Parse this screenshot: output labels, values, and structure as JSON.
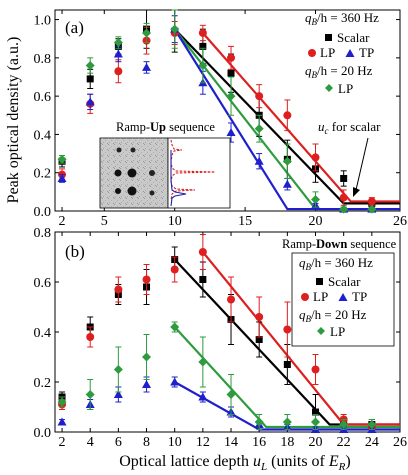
{
  "figure": {
    "ylabel": "Peak optical density (a.u.)",
    "xlabel_main": "Optical lattice depth ",
    "xlabel_sym": "u",
    "xlabel_sub": "L",
    "xlabel_units_open": " (units of ",
    "xlabel_units_sym": "E",
    "xlabel_units_sub": "R",
    "xlabel_units_close": ")"
  },
  "colors": {
    "scalar": "#000000",
    "lp_360": "#dd1f1f",
    "tp_360": "#1f1fcc",
    "lp_20": "#2e9b3e",
    "inset_red": "#d42020",
    "inset_blue": "#2020b0"
  },
  "icons": {
    "scalar": "square",
    "lp_360": "circle",
    "tp_360": "triangle",
    "lp_20": "diamond"
  },
  "chart_data": [
    {
      "type": "scatter",
      "panel_label": "(a)",
      "x_ticks": [
        2,
        5,
        10,
        15,
        20,
        26
      ],
      "y_ticks": [
        "0.0",
        "0.2",
        "0.4",
        "0.6",
        "0.8",
        "1.0"
      ],
      "show_x_ticklabels": true,
      "xlim": [
        1.5,
        26
      ],
      "ylim": [
        0,
        1.05
      ],
      "legend": {
        "header1": "q_B/h = 360 Hz",
        "header1_prefix": "q",
        "header1_sub": "B",
        "header1_suffix": "/h = 360 Hz",
        "scalar": "Scalar",
        "lp": "LP",
        "tp": "TP",
        "header2_prefix": "q",
        "header2_sub": "B",
        "header2_suffix": "/h = 20 Hz",
        "lp20": "LP"
      },
      "annotation": {
        "prefix": "u",
        "sub": "c",
        "suffix": " for scalar"
      },
      "inset": {
        "title_before": "Ramp-",
        "title_bold": "Up",
        "title_after": " sequence"
      },
      "series": [
        {
          "key": "scalar",
          "marker": "square",
          "x": [
            2,
            4,
            6,
            8,
            10,
            12,
            14,
            16,
            18,
            20,
            22,
            24
          ],
          "y": [
            0.26,
            0.69,
            0.86,
            0.95,
            0.94,
            0.86,
            0.72,
            0.5,
            0.27,
            0.22,
            0.17,
            0.04
          ],
          "err": [
            0.03,
            0.05,
            0.04,
            0.1,
            0.11,
            0.09,
            0.1,
            0.11,
            0.1,
            0.07,
            0.04,
            0.02
          ]
        },
        {
          "key": "lp_360",
          "marker": "circle",
          "x": [
            2,
            4,
            6,
            8,
            10,
            12,
            14,
            16,
            18,
            20,
            22,
            24
          ],
          "y": [
            0.19,
            0.56,
            0.73,
            0.89,
            0.93,
            0.93,
            0.8,
            0.6,
            0.5,
            0.28,
            0.07,
            0.05
          ],
          "err": [
            0.03,
            0.05,
            0.06,
            0.07,
            0.06,
            0.04,
            0.06,
            0.06,
            0.08,
            0.07,
            0.04,
            0.02
          ]
        },
        {
          "key": "tp_360",
          "marker": "triangle",
          "x": [
            2,
            4,
            6,
            8,
            10,
            12,
            14,
            16,
            18,
            20,
            22,
            24
          ],
          "y": [
            0.17,
            0.57,
            0.82,
            0.75,
            0.95,
            0.67,
            0.41,
            0.26,
            0.14,
            0.03,
            0.01,
            0.01
          ],
          "err": [
            0.02,
            0.04,
            0.04,
            0.03,
            0.07,
            0.06,
            0.05,
            0.04,
            0.03,
            0.01,
            0.01,
            0.01
          ]
        },
        {
          "key": "lp_20",
          "marker": "diamond",
          "x": [
            2,
            4,
            6,
            8,
            10,
            12,
            14,
            16,
            18,
            20,
            22,
            24
          ],
          "y": [
            0.27,
            0.76,
            0.88,
            0.93,
            0.95,
            0.76,
            0.6,
            0.43,
            0.26,
            0.06,
            0.01,
            0.01
          ],
          "err": [
            0.02,
            0.04,
            0.03,
            0.05,
            0.1,
            0.09,
            0.1,
            0.07,
            0.09,
            0.04,
            0.01,
            0.01
          ]
        }
      ],
      "fits": [
        {
          "key": "scalar",
          "x": [
            10,
            22,
            26
          ],
          "y": [
            0.95,
            0.04,
            0.04
          ]
        },
        {
          "key": "lp_360",
          "x": [
            12,
            22.5,
            26
          ],
          "y": [
            0.93,
            0.05,
            0.05
          ]
        },
        {
          "key": "lp_20",
          "x": [
            10,
            20,
            26
          ],
          "y": [
            0.95,
            0.01,
            0.01
          ]
        },
        {
          "key": "tp_360",
          "x": [
            10,
            18,
            26
          ],
          "y": [
            0.95,
            0.01,
            0.01
          ]
        }
      ]
    },
    {
      "type": "scatter",
      "panel_label": "(b)",
      "x_ticks": [
        2,
        4,
        6,
        8,
        10,
        12,
        14,
        16,
        18,
        20,
        22,
        24,
        26
      ],
      "y_ticks": [
        "0.0",
        "0.2",
        "0.4",
        "0.6",
        "0.8"
      ],
      "show_x_ticklabels": true,
      "xlim": [
        1.5,
        26
      ],
      "ylim": [
        0,
        0.8
      ],
      "legend": {
        "title_before": "Ramp-",
        "title_bold": "Down",
        "title_after": " sequence",
        "header1_prefix": "q",
        "header1_sub": "B",
        "header1_suffix": "/h = 360 Hz",
        "scalar": "Scalar",
        "lp": "LP",
        "tp": "TP",
        "header2_prefix": "q",
        "header2_sub": "B",
        "header2_suffix": "/h = 20 Hz",
        "lp20": "LP"
      },
      "series": [
        {
          "key": "scalar",
          "marker": "square",
          "x": [
            2,
            4,
            6,
            8,
            10,
            12,
            14,
            16,
            18,
            20,
            22,
            24
          ],
          "y": [
            0.14,
            0.42,
            0.55,
            0.58,
            0.69,
            0.61,
            0.45,
            0.37,
            0.27,
            0.08,
            0.04,
            0.03
          ],
          "err": [
            0.02,
            0.04,
            0.04,
            0.07,
            0.05,
            0.07,
            0.1,
            0.07,
            0.08,
            0.07,
            0.02,
            0.02
          ]
        },
        {
          "key": "lp_360",
          "marker": "circle",
          "x": [
            2,
            4,
            6,
            8,
            10,
            12,
            14,
            16,
            18,
            20,
            22,
            24
          ],
          "y": [
            0.11,
            0.38,
            0.57,
            0.61,
            0.65,
            0.72,
            0.53,
            0.46,
            0.41,
            0.25,
            0.05,
            0.02
          ],
          "err": [
            0.02,
            0.04,
            0.05,
            0.06,
            0.05,
            0.07,
            0.09,
            0.08,
            0.11,
            0.06,
            0.02,
            0.01
          ]
        },
        {
          "key": "tp_360",
          "marker": "triangle",
          "x": [
            2,
            4,
            6,
            8,
            10,
            12,
            14,
            16,
            18,
            20,
            22,
            24
          ],
          "y": [
            0.04,
            0.11,
            0.15,
            0.19,
            0.2,
            0.14,
            0.08,
            0.03,
            0.02,
            0.01,
            0.01,
            0.01
          ],
          "err": [
            0.01,
            0.02,
            0.03,
            0.03,
            0.02,
            0.02,
            0.02,
            0.01,
            0.01,
            0.01,
            0.01,
            0.01
          ]
        },
        {
          "key": "lp_20",
          "marker": "diamond",
          "x": [
            2,
            4,
            6,
            8,
            10,
            12,
            14,
            16,
            18,
            20,
            22,
            24
          ],
          "y": [
            0.12,
            0.15,
            0.25,
            0.3,
            0.42,
            0.28,
            0.15,
            0.04,
            0.04,
            0.04,
            0.03,
            0.03
          ],
          "err": [
            0.02,
            0.06,
            0.09,
            0.09,
            0.02,
            0.1,
            0.08,
            0.03,
            0.03,
            0.03,
            0.02,
            0.02
          ]
        }
      ],
      "fits": [
        {
          "key": "scalar",
          "x": [
            10,
            21,
            26
          ],
          "y": [
            0.69,
            0.03,
            0.03
          ]
        },
        {
          "key": "lp_360",
          "x": [
            12,
            22,
            26
          ],
          "y": [
            0.72,
            0.03,
            0.03
          ]
        },
        {
          "key": "lp_20",
          "x": [
            10,
            16.5,
            26
          ],
          "y": [
            0.42,
            0.02,
            0.02
          ]
        },
        {
          "key": "tp_360",
          "x": [
            10,
            16,
            26
          ],
          "y": [
            0.2,
            0.01,
            0.01
          ]
        }
      ]
    }
  ]
}
